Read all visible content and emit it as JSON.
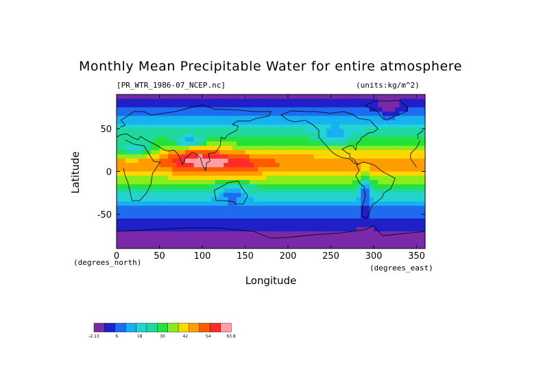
{
  "chart_data": {
    "type": "heatmap",
    "title": "Monthly Mean Precipitable Water for entire atmosphere",
    "subtitle_left": "[PR_WTR_1986-07_NCEP.nc]",
    "subtitle_right": "(units:kg/m^2)",
    "xlabel": "Longitude",
    "ylabel": "Latitude",
    "x_unit_note": "(degrees_east)",
    "y_unit_note": "(degrees_north)",
    "xlim": [
      0,
      357.5
    ],
    "ylim": [
      -90,
      90
    ],
    "x_ticks": [
      0,
      50,
      100,
      150,
      200,
      250,
      300,
      350
    ],
    "y_ticks": [
      -50,
      0,
      50
    ],
    "colorbar": {
      "levels": [
        -2.13,
        6,
        18,
        30,
        42,
        54,
        63.8
      ],
      "level_labels": [
        "-2.13",
        "6",
        "18",
        "30",
        "42",
        "54",
        "63.8"
      ],
      "colors": [
        "#7a2aa8",
        "#2020c8",
        "#1f6bef",
        "#17b1f2",
        "#23d3d3",
        "#1fd99a",
        "#26e03c",
        "#8aec1a",
        "#ffd700",
        "#ff9d00",
        "#ff5a00",
        "#ff2a2a",
        "#ff9fa8"
      ]
    },
    "zonal_mean_profile": {
      "lat": [
        90,
        80,
        70,
        60,
        50,
        40,
        30,
        20,
        10,
        0,
        -10,
        -20,
        -30,
        -40,
        -50,
        -60,
        -70,
        -80,
        -90
      ],
      "values": [
        2,
        4,
        10,
        16,
        22,
        28,
        34,
        42,
        48,
        44,
        36,
        26,
        20,
        14,
        10,
        6,
        2,
        0,
        -1
      ]
    }
  }
}
